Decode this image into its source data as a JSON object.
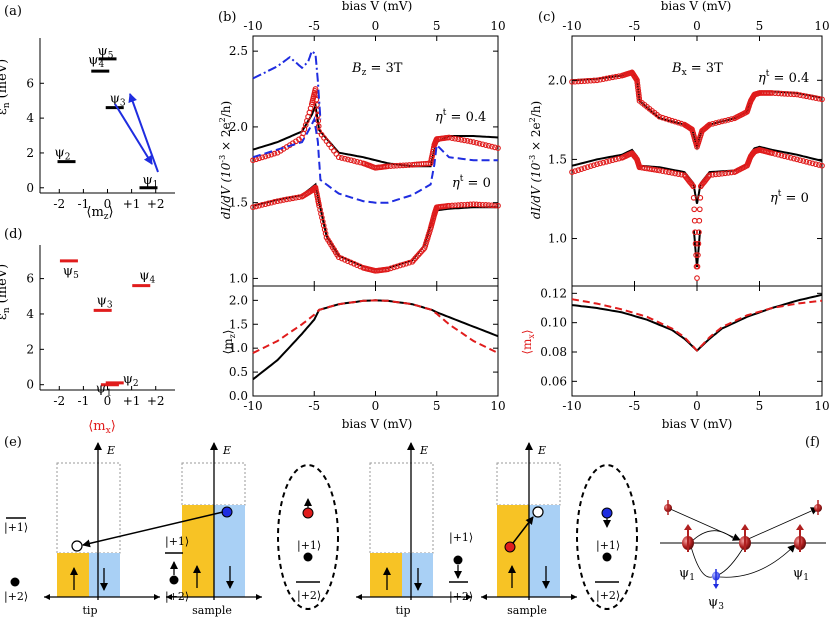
{
  "panels": {
    "a": {
      "label": "(a)",
      "ylabel": "ε",
      "ylabel_sub": "n",
      "ylabel_unit": " (meV)",
      "xlabel": "⟨m",
      "xlabel_sub": "z",
      "xlabel_end": "⟩",
      "xticks": [
        "-2",
        "-1",
        "0",
        "+1",
        "+2"
      ],
      "yticks": [
        "0",
        "2",
        "4",
        "6"
      ],
      "levels": [
        {
          "name": "ψ",
          "sub": "1"
        },
        {
          "name": "ψ",
          "sub": "2"
        },
        {
          "name": "ψ",
          "sub": "3"
        },
        {
          "name": "ψ",
          "sub": "4"
        },
        {
          "name": "ψ",
          "sub": "5"
        }
      ]
    },
    "b": {
      "label": "(b)",
      "field_main": "B",
      "field_sub": "z",
      "field_val": " = 3T",
      "eta_a": "η",
      "eta_a_sup": "t",
      "eta_a_val": " = 0.4",
      "eta_b": "η",
      "eta_b_sup": "t",
      "eta_b_val": " = 0",
      "top_xlabel": "bias V (mV)",
      "bottom_xlabel": "bias V (mV)",
      "ylabel": "dI/dV (10",
      "ylabel_sup": "-3",
      "ylabel_end": " × 2e",
      "ylabel_sup2": "2",
      "ylabel_tail": "/h)",
      "ylabel_lower": "⟨m",
      "ylabel_lower_sub": "z",
      "ylabel_lower_end": "⟩",
      "xticks": [
        "-10",
        "-5",
        "0",
        "5",
        "10"
      ],
      "yticks_upper": [
        "1.0",
        "1.5",
        "2.0",
        "2.5"
      ],
      "yticks_lower": [
        "0.0",
        "0.5",
        "1.0",
        "1.5",
        "2.0"
      ]
    },
    "c": {
      "label": "(c)",
      "field_main": "B",
      "field_sub": "x",
      "field_val": " = 3T",
      "eta_a": "η",
      "eta_a_sup": "t",
      "eta_a_val": " = 0.4",
      "eta_b": "η",
      "eta_b_sup": "t",
      "eta_b_val": " = 0",
      "top_xlabel": "bias V (mV)",
      "bottom_xlabel": "bias V (mV)",
      "ylabel": "dI/dV (10",
      "ylabel_sup": "-3",
      "ylabel_end": " × 2e",
      "ylabel_sup2": "2",
      "ylabel_tail": "/h)",
      "ylabel_lower": "⟨m",
      "ylabel_lower_sub": "x",
      "ylabel_lower_end": "⟩",
      "xticks": [
        "-10",
        "-5",
        "0",
        "5",
        "10"
      ],
      "yticks_upper": [
        "1.0",
        "1.5",
        "2.0"
      ],
      "yticks_lower": [
        "0.06",
        "0.08",
        "0.10",
        "0.12"
      ]
    },
    "d": {
      "label": "(d)",
      "ylabel": "ε",
      "ylabel_sub": "n",
      "ylabel_unit": " (meV)",
      "xlabel": "⟨m",
      "xlabel_sub": "x",
      "xlabel_end": "⟩",
      "xticks": [
        "-2",
        "-1",
        "0",
        "+1",
        "+2"
      ],
      "yticks": [
        "0",
        "2",
        "4",
        "6"
      ],
      "levels": [
        {
          "name": "ψ",
          "sub": "1"
        },
        {
          "name": "ψ",
          "sub": "2"
        },
        {
          "name": "ψ",
          "sub": "3"
        },
        {
          "name": "ψ",
          "sub": "4"
        },
        {
          "name": "ψ",
          "sub": "5"
        }
      ]
    },
    "e": {
      "label": "(e)",
      "axis_label": "E",
      "ket_p1": "|+1⟩",
      "ket_p2": "|+2⟩",
      "tip": "tip",
      "sample": "sample"
    },
    "f": {
      "label": "(f)",
      "psi1_left": "ψ",
      "psi1_left_sub": "1",
      "psi1_right": "ψ",
      "psi1_right_sub": "1",
      "psi3": "ψ",
      "psi3_sub": "3"
    }
  },
  "colors": {
    "red": "#e01c1c",
    "blue": "#1f2de0",
    "yellow": "#f7c325",
    "lightblue": "#a9d0f5"
  },
  "chart_data": [
    {
      "type": "line",
      "panel": "a",
      "xlabel": "⟨mz⟩",
      "ylabel": "εn (meV)",
      "xlim": [
        -2.8,
        2.8
      ],
      "ylim": [
        -0.3,
        8.6
      ],
      "series": [
        {
          "name": "ψ1",
          "x": 1.7,
          "y": 0.0
        },
        {
          "name": "ψ2",
          "x": -1.7,
          "y": 1.5
        },
        {
          "name": "ψ3",
          "x": 0.3,
          "y": 4.6
        },
        {
          "name": "ψ4",
          "x": -0.3,
          "y": 6.7
        },
        {
          "name": "ψ5",
          "x": 0.0,
          "y": 7.4
        }
      ]
    },
    {
      "type": "line",
      "panel": "d",
      "xlabel": "⟨mx⟩",
      "ylabel": "εn (meV)",
      "xlim": [
        -2.8,
        2.8
      ],
      "ylim": [
        -0.3,
        7.9
      ],
      "series": [
        {
          "name": "ψ1",
          "x": 0.1,
          "y": 0.0
        },
        {
          "name": "ψ2",
          "x": 0.3,
          "y": 0.1
        },
        {
          "name": "ψ3",
          "x": -0.2,
          "y": 4.2
        },
        {
          "name": "ψ4",
          "x": 1.4,
          "y": 5.6
        },
        {
          "name": "ψ5",
          "x": -1.6,
          "y": 7.0
        }
      ]
    },
    {
      "type": "line",
      "panel": "b-upper",
      "xlim": [
        -10,
        10
      ],
      "ylim": [
        0.95,
        2.6
      ],
      "xlabel": "bias V (mV)",
      "ylabel": "dI/dV (10^-3 × 2e^2/h)",
      "series": [
        {
          "style": "black",
          "x": [
            -10,
            -8,
            -6,
            -5.2,
            -4.9,
            -4.6,
            -3,
            -1,
            0,
            1,
            3,
            4.5,
            4.8,
            5,
            6,
            8,
            10
          ],
          "y": [
            1.85,
            1.9,
            1.97,
            2.08,
            2.14,
            1.98,
            1.83,
            1.8,
            1.78,
            1.76,
            1.74,
            1.74,
            1.85,
            1.9,
            1.94,
            1.94,
            1.93
          ]
        },
        {
          "style": "red-circles",
          "x": [
            -10,
            -8,
            -6,
            -5.2,
            -4.9,
            -4.6,
            -3,
            -1,
            0,
            1,
            3,
            4.5,
            4.8,
            5,
            6,
            8,
            10
          ],
          "y": [
            1.78,
            1.83,
            1.93,
            2.15,
            2.25,
            1.97,
            1.8,
            1.76,
            1.73,
            1.74,
            1.75,
            1.76,
            1.88,
            1.92,
            1.93,
            1.9,
            1.86
          ]
        },
        {
          "style": "blue-dashed",
          "x": [
            -10,
            -6,
            -5.3,
            -5.0,
            -4.7,
            -4.5,
            -3,
            -1,
            0,
            1,
            3,
            4.5,
            4.8,
            5,
            6,
            8,
            10
          ],
          "y": [
            1.8,
            1.9,
            2.0,
            2.05,
            1.9,
            1.65,
            1.56,
            1.51,
            1.5,
            1.5,
            1.55,
            1.62,
            1.75,
            1.88,
            1.8,
            1.78,
            1.78
          ]
        },
        {
          "style": "blue-dashdot",
          "x": [
            -10,
            -8,
            -7,
            -6,
            -5.5,
            -5.2,
            -4.9,
            -4.7,
            -4.5
          ],
          "y": [
            2.32,
            2.4,
            2.46,
            2.39,
            2.43,
            2.5,
            2.48,
            2.3,
            2.05
          ]
        },
        {
          "style": "black",
          "x": [
            -10,
            -8,
            -6,
            -5.2,
            -4.9,
            -4.6,
            -4,
            -3,
            -1,
            0,
            1,
            3,
            4,
            4.5,
            4.8,
            5,
            6,
            8,
            10
          ],
          "y": [
            1.48,
            1.52,
            1.55,
            1.6,
            1.62,
            1.5,
            1.28,
            1.15,
            1.08,
            1.06,
            1.07,
            1.12,
            1.22,
            1.35,
            1.42,
            1.45,
            1.46,
            1.47,
            1.47
          ]
        },
        {
          "style": "red-circles",
          "x": [
            -10,
            -8,
            -6,
            -5.2,
            -4.9,
            -4.6,
            -4,
            -3,
            -1,
            0,
            1,
            3,
            4,
            4.5,
            4.8,
            5,
            6,
            8,
            10
          ],
          "y": [
            1.47,
            1.51,
            1.54,
            1.58,
            1.6,
            1.48,
            1.27,
            1.14,
            1.07,
            1.05,
            1.06,
            1.11,
            1.2,
            1.33,
            1.42,
            1.47,
            1.48,
            1.49,
            1.48
          ]
        }
      ]
    },
    {
      "type": "line",
      "panel": "b-lower",
      "xlim": [
        -10,
        10
      ],
      "ylim": [
        0.0,
        2.3
      ],
      "xlabel": "bias V (mV)",
      "ylabel": "⟨mz⟩",
      "series": [
        {
          "style": "black",
          "x": [
            -10,
            -8,
            -6,
            -5,
            -4.6,
            -3,
            -1,
            0,
            1,
            3,
            4.6,
            5,
            6,
            8,
            10
          ],
          "y": [
            0.35,
            0.75,
            1.3,
            1.6,
            1.8,
            1.92,
            1.99,
            2.0,
            1.99,
            1.92,
            1.8,
            1.75,
            1.65,
            1.45,
            1.25
          ]
        },
        {
          "style": "red-dashed",
          "x": [
            -10,
            -8,
            -6,
            -5,
            -4.6,
            -3,
            -1,
            0,
            1,
            3,
            4.6,
            5,
            6,
            8,
            10
          ],
          "y": [
            0.9,
            1.15,
            1.5,
            1.7,
            1.8,
            1.92,
            1.99,
            2.0,
            1.99,
            1.92,
            1.8,
            1.72,
            1.5,
            1.15,
            0.9
          ]
        }
      ]
    },
    {
      "type": "line",
      "panel": "c-upper",
      "xlim": [
        -10,
        10
      ],
      "ylim": [
        0.7,
        2.28
      ],
      "xlabel": "bias V (mV)",
      "ylabel": "dI/dV (10^-3 × 2e^2/h)",
      "series": [
        {
          "style": "black",
          "x": [
            -10,
            -8,
            -6,
            -5.2,
            -4.8,
            -4.6,
            -3,
            -1,
            -0.4,
            0,
            0.4,
            1,
            3,
            4,
            4.3,
            4.6,
            5,
            6,
            8,
            10
          ],
          "y": [
            2.0,
            2.01,
            2.03,
            2.06,
            2.01,
            1.87,
            1.76,
            1.72,
            1.69,
            1.58,
            1.69,
            1.72,
            1.76,
            1.8,
            1.88,
            1.92,
            1.93,
            1.93,
            1.92,
            1.89
          ]
        },
        {
          "style": "red-circles",
          "x": [
            -10,
            -8,
            -6,
            -5.2,
            -4.8,
            -4.6,
            -3,
            -1,
            -0.4,
            0,
            0.4,
            1,
            3,
            4,
            4.3,
            4.6,
            5,
            6,
            8,
            10
          ],
          "y": [
            1.99,
            2.0,
            2.03,
            2.05,
            2.0,
            1.87,
            1.77,
            1.72,
            1.69,
            1.58,
            1.68,
            1.72,
            1.76,
            1.8,
            1.87,
            1.91,
            1.92,
            1.92,
            1.91,
            1.88
          ]
        },
        {
          "style": "black",
          "x": [
            -10,
            -8,
            -6,
            -5.2,
            -4.8,
            -4.6,
            -3,
            -1,
            -0.3,
            0,
            0.3,
            1,
            3,
            4,
            4.3,
            4.6,
            5,
            6,
            8,
            10
          ],
          "y": [
            1.46,
            1.5,
            1.53,
            1.56,
            1.52,
            1.46,
            1.45,
            1.42,
            1.35,
            1.22,
            1.35,
            1.42,
            1.43,
            1.47,
            1.54,
            1.57,
            1.58,
            1.56,
            1.53,
            1.49
          ]
        },
        {
          "style": "black",
          "x": [
            -0.25,
            0,
            0.25
          ],
          "y": [
            1.05,
            0.82,
            1.05
          ]
        },
        {
          "style": "red-circles",
          "x": [
            -10,
            -8,
            -6,
            -5.2,
            -4.8,
            -4.6,
            -3,
            -1,
            -0.3,
            0,
            0.3,
            1,
            3,
            4,
            4.3,
            4.6,
            5,
            6,
            8,
            10
          ],
          "y": [
            1.42,
            1.47,
            1.51,
            1.54,
            1.5,
            1.45,
            1.43,
            1.4,
            1.33,
            0.75,
            1.33,
            1.4,
            1.42,
            1.46,
            1.52,
            1.55,
            1.56,
            1.54,
            1.5,
            1.46
          ]
        }
      ]
    },
    {
      "type": "line",
      "panel": "c-lower",
      "xlim": [
        -10,
        10
      ],
      "ylim": [
        0.05,
        0.125
      ],
      "xlabel": "bias V (mV)",
      "ylabel": "⟨mx⟩",
      "series": [
        {
          "style": "black",
          "x": [
            -10,
            -8,
            -6,
            -4,
            -2,
            -1,
            0,
            1,
            2,
            4,
            6,
            8,
            10
          ],
          "y": [
            0.112,
            0.11,
            0.107,
            0.102,
            0.095,
            0.089,
            0.081,
            0.089,
            0.096,
            0.104,
            0.11,
            0.115,
            0.119
          ]
        },
        {
          "style": "red-dashed",
          "x": [
            -10,
            -8,
            -6,
            -4,
            -2,
            -1,
            0,
            1,
            2,
            4,
            6,
            8,
            10
          ],
          "y": [
            0.116,
            0.113,
            0.109,
            0.104,
            0.096,
            0.09,
            0.081,
            0.09,
            0.097,
            0.105,
            0.11,
            0.113,
            0.115
          ]
        }
      ]
    }
  ]
}
